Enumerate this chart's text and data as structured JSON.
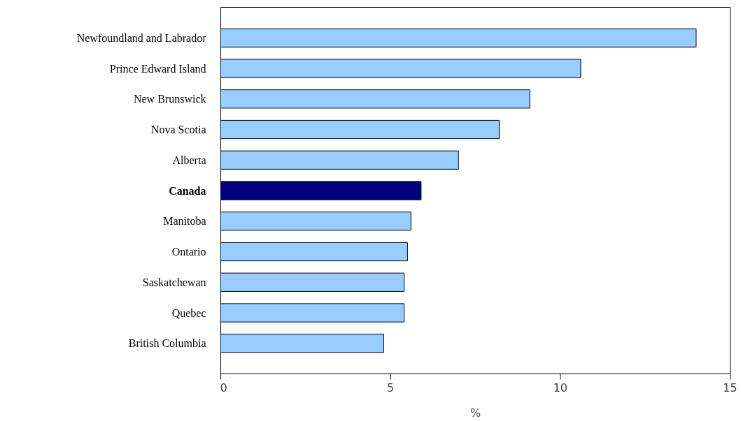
{
  "chart_data": {
    "type": "bar",
    "orientation": "horizontal",
    "xlabel": "%",
    "categories": [
      "Newfoundland and Labrador",
      "Prince Edward Island",
      "New Brunswick",
      "Nova Scotia",
      "Alberta",
      "Canada",
      "Manitoba",
      "Ontario",
      "Saskatchewan",
      "Quebec",
      "British Columbia"
    ],
    "values": [
      14.0,
      10.6,
      9.1,
      8.2,
      7.0,
      5.9,
      5.6,
      5.5,
      5.4,
      5.4,
      4.8
    ],
    "colors": [
      "#99ccff",
      "#99ccff",
      "#99ccff",
      "#99ccff",
      "#99ccff",
      "#000080",
      "#99ccff",
      "#99ccff",
      "#99ccff",
      "#99ccff",
      "#99ccff"
    ],
    "xlim": [
      0,
      15
    ],
    "xticks": [
      0,
      5,
      10,
      15
    ],
    "grid": false
  }
}
